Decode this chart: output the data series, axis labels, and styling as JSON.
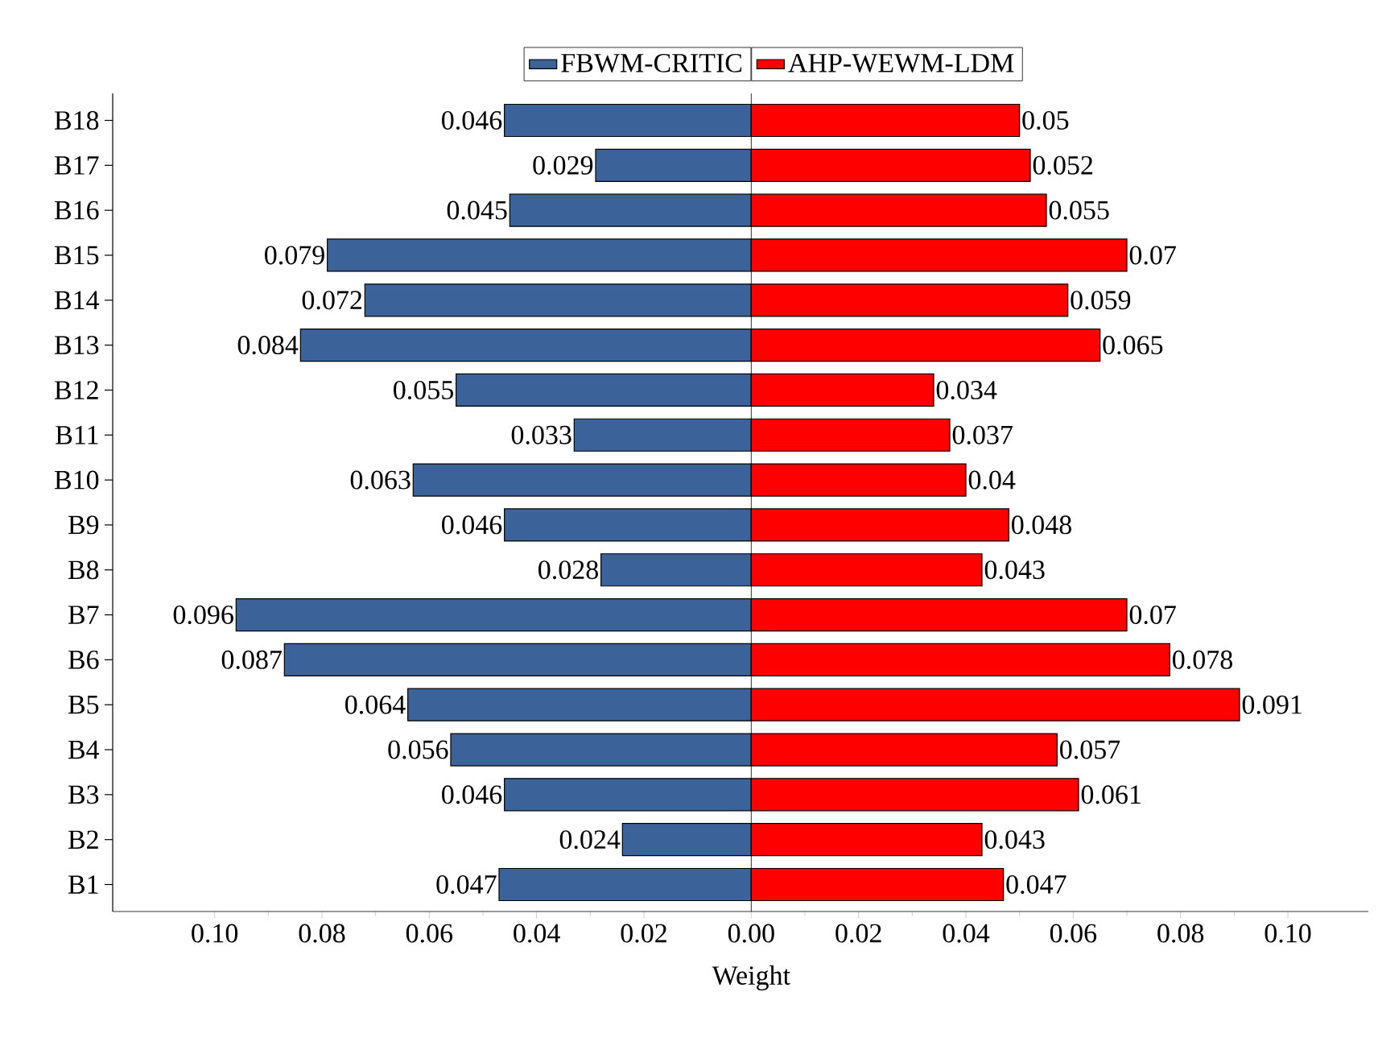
{
  "chart_data": [
    {
      "type": "bar",
      "orientation": "horizontal",
      "xlabel": "Weight",
      "categories": [
        "B18",
        "B17",
        "B16",
        "B15",
        "B14",
        "B13",
        "B12",
        "B11",
        "B10",
        "B9",
        "B8",
        "B7",
        "B6",
        "B5",
        "B4",
        "B3",
        "B2",
        "B1"
      ],
      "series": [
        {
          "name": "FBWM-CRITIC",
          "color": "#3b6399",
          "values": [
            0.046,
            0.029,
            0.045,
            0.079,
            0.072,
            0.084,
            0.055,
            0.033,
            0.063,
            0.046,
            0.028,
            0.096,
            0.087,
            0.064,
            0.056,
            0.046,
            0.024,
            0.047
          ],
          "value_labels": [
            "0.046",
            "0.029",
            "0.045",
            "0.079",
            "0.072",
            "0.084",
            "0.055",
            "0.033",
            "0.063",
            "0.046",
            "0.028",
            "0.096",
            "0.087",
            "0.064",
            "0.056",
            "0.046",
            "0.024",
            "0.047"
          ]
        }
      ],
      "xlim": [
        0.119,
        0
      ],
      "xticks": [
        {
          "value": 0.1,
          "label": "0.10"
        },
        {
          "value": 0.08,
          "label": "0.08"
        },
        {
          "value": 0.06,
          "label": "0.06"
        },
        {
          "value": 0.04,
          "label": "0.04"
        },
        {
          "value": 0.02,
          "label": "0.02"
        }
      ],
      "legend": "top"
    },
    {
      "type": "bar",
      "orientation": "horizontal",
      "categories": [
        null,
        null,
        null,
        null,
        null,
        null,
        null,
        null,
        null,
        null,
        null,
        null,
        null,
        null,
        null,
        null,
        null,
        null
      ],
      "series": [
        {
          "name": "AHP-WEWM-LDM",
          "color": "#ff0000",
          "values": [
            0.05,
            0.052,
            0.055,
            0.07,
            0.059,
            0.065,
            0.034,
            0.037,
            0.04,
            0.048,
            0.043,
            0.07,
            0.078,
            0.091,
            0.057,
            0.061,
            0.043,
            0.047
          ],
          "value_labels": [
            "0.05",
            "0.052",
            "0.055",
            "0.07",
            "0.059",
            "0.065",
            "0.034",
            "0.037",
            "0.04",
            "0.048",
            "0.043",
            "0.07",
            "0.078",
            "0.091",
            "0.057",
            "0.061",
            "0.043",
            "0.047"
          ]
        }
      ],
      "xlim": [
        0,
        0.115
      ],
      "xticks": [
        {
          "value": 0,
          "label": "0.00"
        },
        {
          "value": 0.02,
          "label": "0.02"
        },
        {
          "value": 0.04,
          "label": "0.04"
        },
        {
          "value": 0.06,
          "label": "0.06"
        },
        {
          "value": 0.08,
          "label": "0.08"
        },
        {
          "value": 0.1,
          "label": "0.10"
        }
      ],
      "tick_labels": "x",
      "legend": "top"
    }
  ]
}
